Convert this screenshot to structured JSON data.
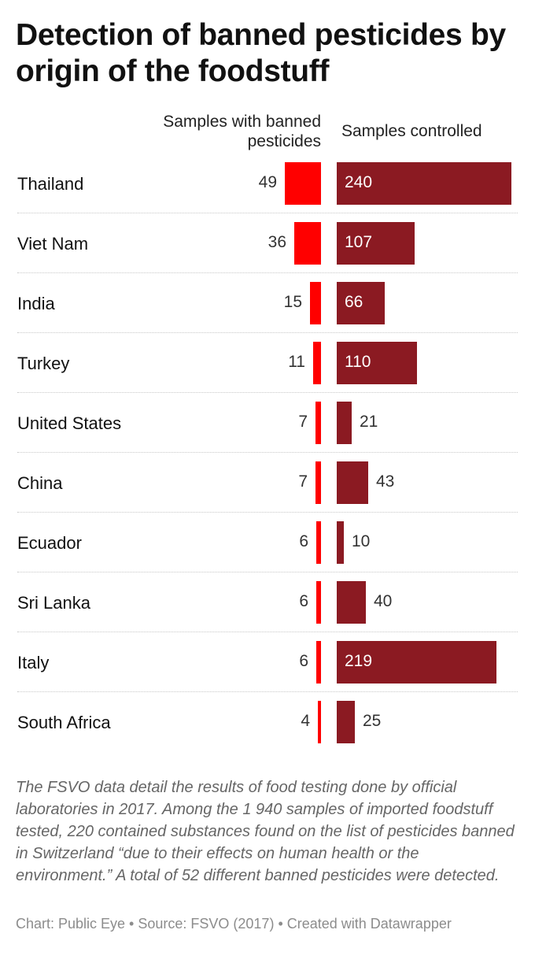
{
  "title": "Detection of banned pesticides by origin of the foodstuff",
  "col_headers": {
    "banned": "Samples with banned pesticides",
    "controlled": "Samples controlled"
  },
  "colors": {
    "banned": "#ff0000",
    "controlled": "#8b1a22"
  },
  "chart_data": {
    "type": "bar",
    "categories": [
      "Thailand",
      "Viet Nam",
      "India",
      "Turkey",
      "United States",
      "China",
      "Ecuador",
      "Sri Lanka",
      "Italy",
      "South Africa"
    ],
    "series": [
      {
        "name": "Samples with banned pesticides",
        "values": [
          49,
          36,
          15,
          11,
          7,
          7,
          6,
          6,
          6,
          4
        ]
      },
      {
        "name": "Samples controlled",
        "values": [
          240,
          107,
          66,
          110,
          21,
          43,
          10,
          40,
          219,
          25
        ]
      }
    ]
  },
  "notes": "The FSVO data detail the results of food testing done by official laboratories in 2017. Among the 1 940 samples of imported foodstuff tested, 220 contained substances found on the list of pesticides banned in Switzerland “due to their effects on human health or the environment.” A total of 52 different banned pesticides were detected.",
  "footer": "Chart: Public Eye • Source: FSVO (2017) • Created with Datawrapper"
}
